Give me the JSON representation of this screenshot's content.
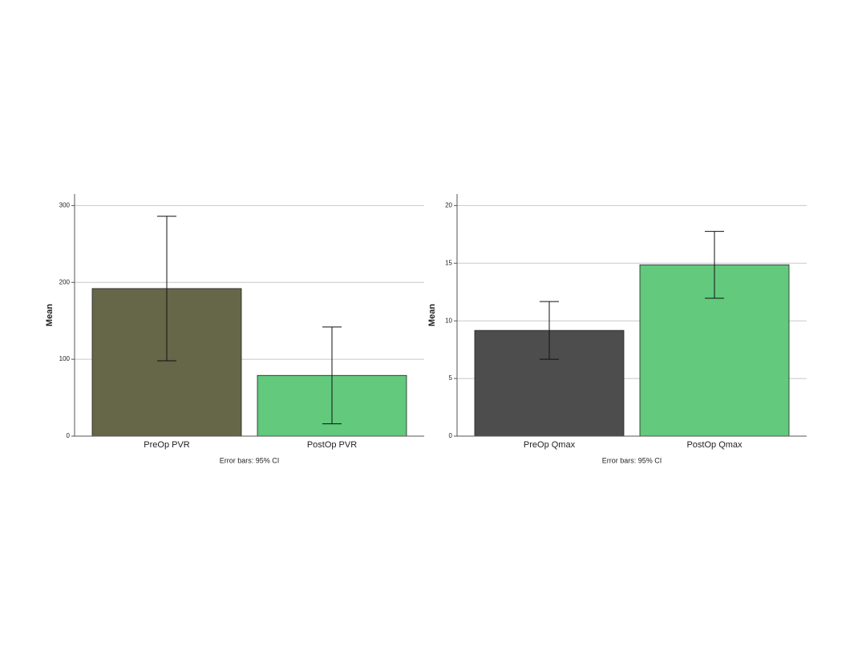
{
  "chart_data": [
    {
      "type": "bar",
      "categories": [
        "PreOp PVR",
        "PostOp PVR"
      ],
      "values": [
        192,
        79
      ],
      "errors": [
        94,
        63
      ],
      "colors": [
        "#666649",
        "#62c97d"
      ],
      "ylabel": "Mean",
      "note": "Error bars: 95% CI",
      "ylim": [
        0,
        315
      ],
      "yticks": [
        0,
        100,
        200,
        300
      ],
      "grid": true
    },
    {
      "type": "bar",
      "categories": [
        "PreOp Qmax",
        "PostOp Qmax"
      ],
      "values": [
        9.17,
        14.86
      ],
      "errors": [
        2.5,
        2.9
      ],
      "colors": [
        "#4d4d4d",
        "#62c97d"
      ],
      "ylabel": "Mean",
      "note": "Error bars: 95% CI",
      "ylim": [
        0,
        21
      ],
      "yticks": [
        0,
        5,
        10,
        15,
        20
      ],
      "grid": true
    }
  ]
}
